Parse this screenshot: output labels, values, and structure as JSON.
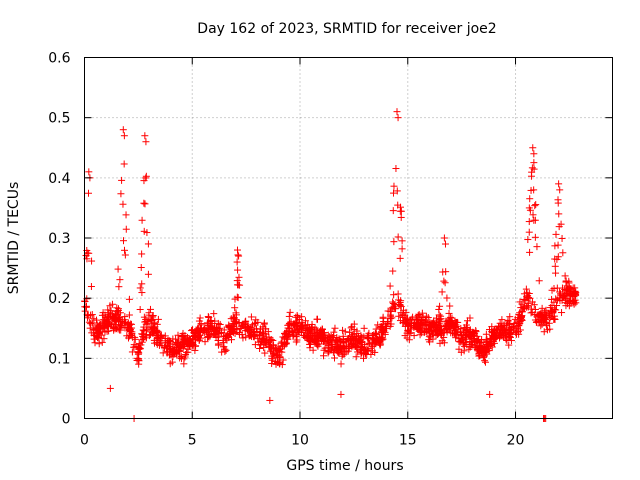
{
  "chart_data": {
    "type": "scatter",
    "title": "Day 162 of 2023, SRMTID for receiver joe2",
    "xlabel": "GPS time / hours",
    "ylabel": "SRMTID / TECUs",
    "xlim": [
      0,
      24.5
    ],
    "ylim": [
      0,
      0.6
    ],
    "x_ticks": [
      0,
      5,
      10,
      15,
      20
    ],
    "y_ticks": [
      0,
      0.1,
      0.2,
      0.3,
      0.4,
      0.5,
      0.6
    ],
    "x_tick_labels": [
      "0",
      "5",
      "10",
      "15",
      "20"
    ],
    "y_tick_labels": [
      "0",
      "0.1",
      "0.2",
      "0.3",
      "0.4",
      "0.5",
      "0.6"
    ],
    "grid": true,
    "marker": "plus",
    "color": "#ff0000",
    "series": [
      {
        "name": "SRMTID",
        "description": "dense scatter; profile of typical values and spikes",
        "baseline_profile": [
          [
            0.0,
            0.19
          ],
          [
            0.5,
            0.14
          ],
          [
            1.0,
            0.16
          ],
          [
            1.5,
            0.17
          ],
          [
            2.0,
            0.15
          ],
          [
            2.5,
            0.11
          ],
          [
            3.0,
            0.17
          ],
          [
            3.5,
            0.13
          ],
          [
            4.0,
            0.11
          ],
          [
            4.5,
            0.12
          ],
          [
            5.0,
            0.13
          ],
          [
            5.5,
            0.15
          ],
          [
            6.0,
            0.15
          ],
          [
            6.5,
            0.13
          ],
          [
            7.0,
            0.16
          ],
          [
            7.5,
            0.15
          ],
          [
            8.0,
            0.14
          ],
          [
            8.5,
            0.13
          ],
          [
            9.0,
            0.1
          ],
          [
            9.5,
            0.15
          ],
          [
            10.0,
            0.15
          ],
          [
            10.5,
            0.14
          ],
          [
            11.0,
            0.14
          ],
          [
            11.5,
            0.12
          ],
          [
            12.0,
            0.12
          ],
          [
            12.5,
            0.13
          ],
          [
            13.0,
            0.12
          ],
          [
            13.5,
            0.13
          ],
          [
            14.0,
            0.15
          ],
          [
            14.5,
            0.2
          ],
          [
            15.0,
            0.15
          ],
          [
            15.5,
            0.16
          ],
          [
            16.0,
            0.15
          ],
          [
            16.5,
            0.15
          ],
          [
            17.0,
            0.16
          ],
          [
            17.5,
            0.13
          ],
          [
            18.0,
            0.14
          ],
          [
            18.5,
            0.11
          ],
          [
            19.0,
            0.14
          ],
          [
            19.5,
            0.15
          ],
          [
            20.0,
            0.14
          ],
          [
            20.5,
            0.2
          ],
          [
            21.0,
            0.17
          ],
          [
            21.5,
            0.16
          ],
          [
            22.0,
            0.2
          ],
          [
            22.5,
            0.21
          ],
          [
            22.8,
            0.2
          ]
        ],
        "spikes": [
          {
            "x": 0.2,
            "peak": 0.41,
            "width": 0.25
          },
          {
            "x": 1.8,
            "peak": 0.48,
            "width": 0.35
          },
          {
            "x": 2.8,
            "peak": 0.47,
            "width": 0.35
          },
          {
            "x": 7.1,
            "peak": 0.28,
            "width": 0.2
          },
          {
            "x": 14.5,
            "peak": 0.51,
            "width": 0.4
          },
          {
            "x": 16.7,
            "peak": 0.3,
            "width": 0.3
          },
          {
            "x": 20.8,
            "peak": 0.45,
            "width": 0.45
          },
          {
            "x": 22.0,
            "peak": 0.39,
            "width": 0.4
          }
        ],
        "low_points": [
          [
            2.3,
            0.0
          ],
          [
            21.3,
            0.0
          ],
          [
            21.35,
            0.0
          ],
          [
            21.4,
            0.0
          ],
          [
            1.2,
            0.05
          ],
          [
            8.6,
            0.03
          ],
          [
            11.9,
            0.04
          ],
          [
            18.8,
            0.04
          ]
        ],
        "x_range": [
          0.0,
          22.8
        ]
      }
    ]
  }
}
